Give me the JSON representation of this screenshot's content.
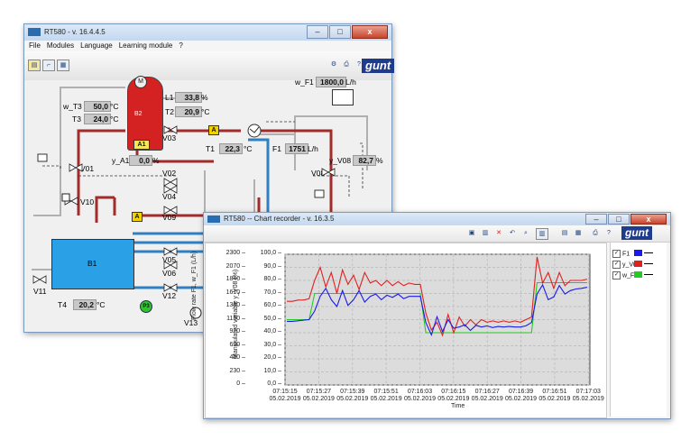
{
  "main_window": {
    "title": "RT580 - v. 16.4.4.5",
    "window_buttons": {
      "minimize": "–",
      "maximize": "□",
      "close": "x"
    },
    "menu": [
      "File",
      "Modules",
      "Language",
      "Learning module",
      "?"
    ],
    "logo": "gunt"
  },
  "process": {
    "tank_B2": "B2",
    "heater": "M",
    "alarm_A1": "A1",
    "tank_B1": "B1",
    "pump_P3": "P3",
    "badge_A": "A",
    "badge_B": "B",
    "readouts": {
      "L1": {
        "label": "L1",
        "value": "33,8",
        "unit": "%"
      },
      "T2": {
        "label": "T2",
        "value": "20,9",
        "unit": "°C"
      },
      "w_T3": {
        "label": "w_T3",
        "value": "50,0",
        "unit": "°C"
      },
      "T3": {
        "label": "T3",
        "value": "24,0",
        "unit": "°C"
      },
      "T1": {
        "label": "T1",
        "value": "22,3",
        "unit": "°C"
      },
      "y_A1": {
        "label": "y_A1",
        "value": "0,0",
        "unit": "%"
      },
      "w_F1": {
        "label": "w_F1",
        "value": "1800,0",
        "unit": "L/h"
      },
      "F1": {
        "label": "F1",
        "value": "1751",
        "unit": "L/h"
      },
      "y_V08": {
        "label": "y_V08",
        "value": "82,7",
        "unit": "%"
      },
      "T4": {
        "label": "T4",
        "value": "20,2",
        "unit": "°C"
      }
    },
    "valves": [
      "V01",
      "V02",
      "V03",
      "V04",
      "V05",
      "V06",
      "V08",
      "V09",
      "V10",
      "V11",
      "V12",
      "V13"
    ]
  },
  "chart_window": {
    "title": "RT580  --  Chart recorder - v. 16.3.5",
    "window_buttons": {
      "minimize": "–",
      "maximize": "□",
      "close": "x"
    },
    "legend": [
      "F1",
      "y_V08",
      "w_F1"
    ]
  },
  "colors": {
    "F1": "#1a1aee",
    "y_V08": "#e02020",
    "w_F1": "#22cc22",
    "hot_pipe": "#a52a2a",
    "cold_pipe": "#2f7fc4",
    "tank_water": "#2aa0e6",
    "heater_tank": "#e02020"
  },
  "chart_data": {
    "type": "line",
    "xlabel": "Time",
    "ylabel_left": "Flow rate   F1, w_F1    (L/h)",
    "ylabel_right": "Manipulated variable   y_V08   (%)",
    "left_axis": {
      "range": [
        0,
        2300
      ],
      "ticks": [
        "2300",
        "2070",
        "1840",
        "1610",
        "1380",
        "1150",
        "920",
        "690",
        "460",
        "230",
        "0"
      ]
    },
    "right_axis": {
      "range": [
        0,
        100
      ],
      "ticks": [
        "100,0",
        "90,0",
        "80,0",
        "70,0",
        "60,0",
        "50,0",
        "40,0",
        "30,0",
        "20,0",
        "10,0",
        "0,0"
      ]
    },
    "x_ticks": [
      {
        "time": "07:15:15",
        "date": "05.02.2019"
      },
      {
        "time": "07:15:27",
        "date": "05.02.2019"
      },
      {
        "time": "07:15:39",
        "date": "05.02.2019"
      },
      {
        "time": "07:15:51",
        "date": "05.02.2019"
      },
      {
        "time": "07:16:03",
        "date": "05.02.2019"
      },
      {
        "time": "07:16:15",
        "date": "05.02.2019"
      },
      {
        "time": "07:16:27",
        "date": "05.02.2019"
      },
      {
        "time": "07:16:39",
        "date": "05.02.2019"
      },
      {
        "time": "07:16:51",
        "date": "05.02.2019"
      },
      {
        "time": "07:17:03",
        "date": "05.02.2019"
      }
    ],
    "grid": true,
    "x_seconds": [
      0,
      2,
      4,
      6,
      8,
      10,
      12,
      14,
      16,
      18,
      20,
      22,
      24,
      26,
      28,
      30,
      32,
      34,
      36,
      38,
      40,
      42,
      44,
      46,
      48,
      50,
      52,
      54,
      56,
      58,
      60,
      62,
      64,
      66,
      68,
      70,
      72,
      74,
      76,
      78,
      80,
      82,
      84,
      86,
      88,
      90,
      92,
      94,
      96,
      98,
      100,
      102,
      104,
      106,
      108
    ],
    "series": [
      {
        "name": "F1",
        "axis": "left",
        "values": [
          1120,
          1120,
          1130,
          1140,
          1150,
          1300,
          1560,
          1700,
          1500,
          1380,
          1660,
          1400,
          1500,
          1660,
          1460,
          1560,
          1600,
          1500,
          1580,
          1540,
          1600,
          1520,
          1560,
          1560,
          1560,
          1100,
          880,
          1200,
          940,
          1150,
          1000,
          1020,
          1060,
          960,
          1050,
          1020,
          1040,
          1010,
          1030,
          1020,
          1030,
          1020,
          1020,
          1040,
          1100,
          1600,
          1760,
          1500,
          1550,
          1750,
          1600,
          1660,
          1690,
          1700,
          1720
        ]
      },
      {
        "name": "y_V08",
        "axis": "right",
        "values": [
          64,
          64,
          65,
          65,
          66,
          80,
          90,
          75,
          86,
          70,
          88,
          77,
          84,
          73,
          86,
          78,
          80,
          76,
          80,
          76,
          79,
          76,
          78,
          77,
          77,
          55,
          42,
          48,
          38,
          54,
          40,
          52,
          45,
          50,
          46,
          50,
          48,
          49,
          48,
          49,
          48,
          49,
          48,
          50,
          52,
          98,
          78,
          86,
          74,
          86,
          76,
          80,
          80,
          80,
          81
        ]
      },
      {
        "name": "w_F1",
        "axis": "left",
        "values": [
          1150,
          1150,
          1150,
          1150,
          1150,
          1610,
          1610,
          1610,
          1610,
          1610,
          1610,
          1610,
          1610,
          1610,
          1610,
          1610,
          1610,
          1610,
          1610,
          1610,
          1610,
          1610,
          1610,
          1610,
          1610,
          920,
          920,
          920,
          920,
          920,
          920,
          920,
          920,
          920,
          920,
          920,
          920,
          920,
          920,
          920,
          920,
          920,
          920,
          920,
          920,
          1800,
          1800,
          1800,
          1800,
          1800,
          1800,
          1800,
          1800,
          1800,
          1800
        ]
      }
    ]
  }
}
